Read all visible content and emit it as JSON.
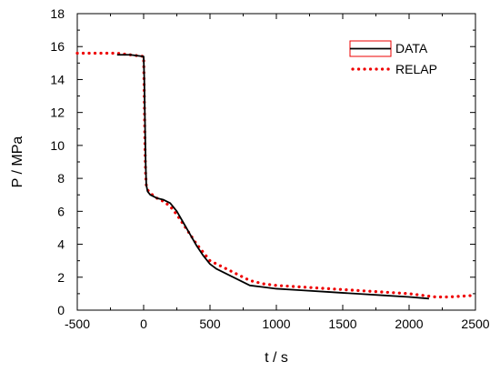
{
  "chart_data": {
    "type": "line",
    "xlabel": "t / s",
    "ylabel": "P / MPa",
    "xlim": [
      -500,
      2500
    ],
    "ylim": [
      0,
      18
    ],
    "xticks": [
      -500,
      0,
      500,
      1000,
      1500,
      2000,
      2500
    ],
    "yticks": [
      0,
      2,
      4,
      6,
      8,
      10,
      12,
      14,
      16,
      18
    ],
    "grid": false,
    "legend_position": "top-right",
    "series": [
      {
        "name": "DATA",
        "color": "#000000",
        "style": "solid",
        "x": [
          -200,
          -100,
          0,
          5,
          10,
          15,
          20,
          30,
          50,
          100,
          150,
          200,
          250,
          300,
          350,
          400,
          450,
          500,
          550,
          600,
          700,
          800,
          900,
          1000,
          1200,
          1400,
          1600,
          1800,
          2000,
          2150
        ],
        "y": [
          15.5,
          15.5,
          15.4,
          14.0,
          11.5,
          9.0,
          7.6,
          7.2,
          7.0,
          6.8,
          6.7,
          6.5,
          6.0,
          5.3,
          4.6,
          3.9,
          3.3,
          2.8,
          2.5,
          2.3,
          1.9,
          1.5,
          1.4,
          1.3,
          1.2,
          1.1,
          1.0,
          0.9,
          0.8,
          0.7
        ]
      },
      {
        "name": "RELAP",
        "color": "#ee0000",
        "style": "dotted",
        "x": [
          -500,
          -400,
          -300,
          -200,
          -100,
          0,
          5,
          10,
          15,
          20,
          30,
          50,
          100,
          150,
          200,
          250,
          300,
          350,
          400,
          450,
          500,
          550,
          600,
          700,
          800,
          900,
          1000,
          1200,
          1400,
          1600,
          1800,
          2000,
          2100,
          2200,
          2300,
          2400,
          2500
        ],
        "y": [
          15.6,
          15.6,
          15.6,
          15.6,
          15.5,
          15.4,
          13.0,
          10.0,
          8.3,
          7.6,
          7.3,
          7.1,
          6.8,
          6.6,
          6.3,
          5.8,
          5.2,
          4.6,
          4.0,
          3.5,
          3.0,
          2.8,
          2.6,
          2.2,
          1.8,
          1.6,
          1.5,
          1.4,
          1.3,
          1.2,
          1.1,
          1.0,
          0.9,
          0.8,
          0.8,
          0.85,
          0.9
        ]
      }
    ]
  }
}
